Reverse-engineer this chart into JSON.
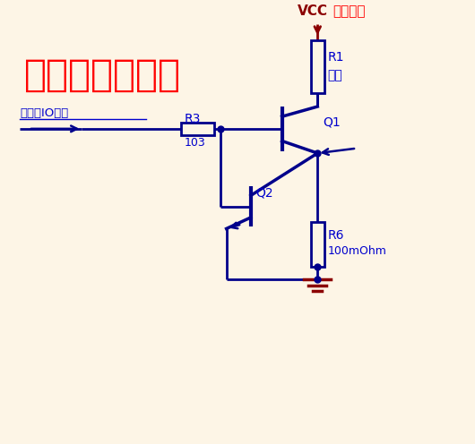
{
  "bg_color": "#fdf5e6",
  "wire_color": "#00008B",
  "dark_red": "#8B0000",
  "red_text": "#FF0000",
  "blue_label": "#0000CD",
  "title": "三极管恒流电路",
  "title_color": "#FF0000",
  "title_fontsize": 30,
  "vcc_label": "VCC",
  "vcc_note": "可变电源",
  "r1_label": "R1",
  "r1_note": "负载",
  "r3_label": "R3",
  "r3_val": "103",
  "q1_label": "Q1",
  "q2_label": "Q2",
  "r6_label": "R6",
  "r6_val": "100mOhm",
  "mcu_label": "单片机IO引脚"
}
